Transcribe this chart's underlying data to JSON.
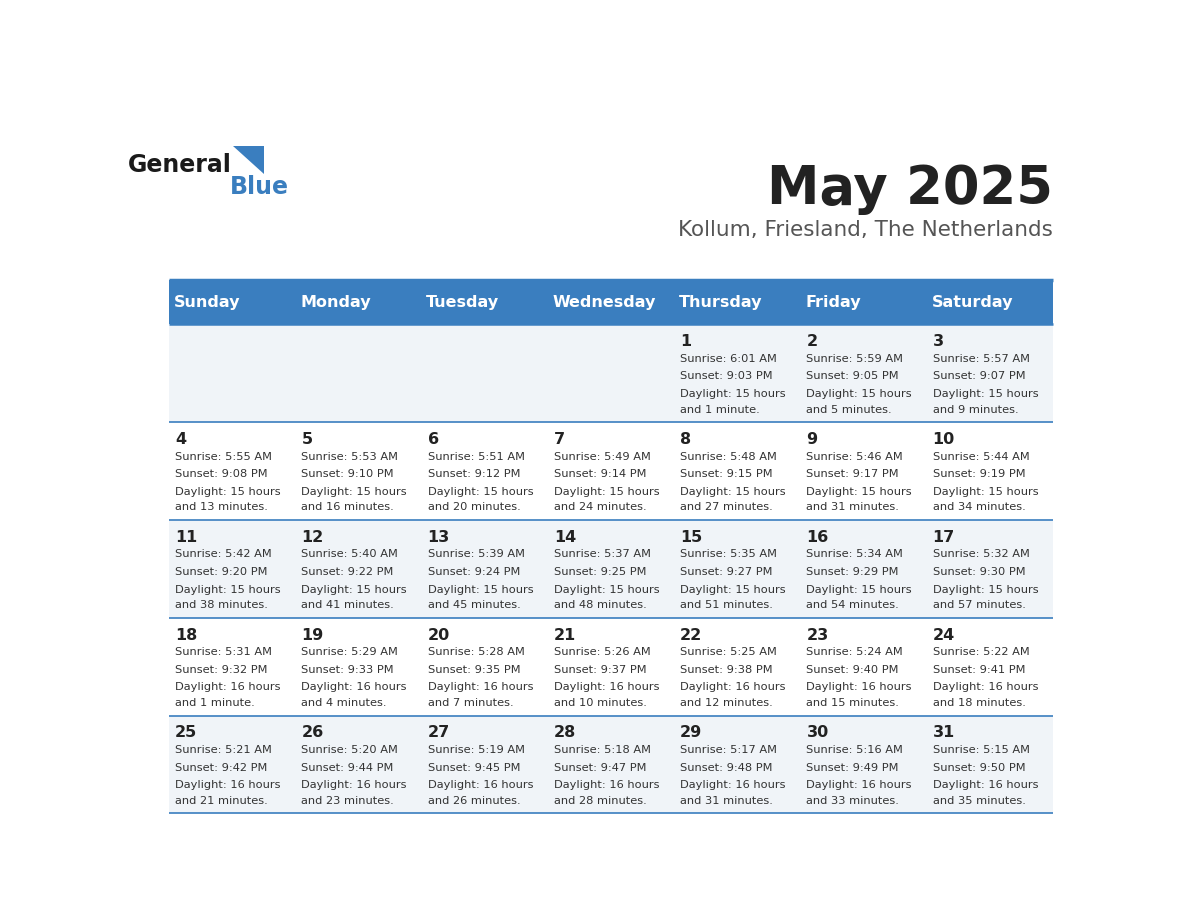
{
  "title": "May 2025",
  "subtitle": "Kollum, Friesland, The Netherlands",
  "header_bg": "#3a7ebf",
  "header_text": "#ffffff",
  "row_bg_odd": "#f0f4f8",
  "row_bg_even": "#ffffff",
  "border_color": "#3a7ebf",
  "day_names": [
    "Sunday",
    "Monday",
    "Tuesday",
    "Wednesday",
    "Thursday",
    "Friday",
    "Saturday"
  ],
  "title_color": "#222222",
  "subtitle_color": "#555555",
  "day_number_color": "#222222",
  "cell_text_color": "#333333",
  "calendar": [
    [
      {
        "day": "",
        "sunrise": "",
        "sunset": "",
        "daylight": ""
      },
      {
        "day": "",
        "sunrise": "",
        "sunset": "",
        "daylight": ""
      },
      {
        "day": "",
        "sunrise": "",
        "sunset": "",
        "daylight": ""
      },
      {
        "day": "",
        "sunrise": "",
        "sunset": "",
        "daylight": ""
      },
      {
        "day": "1",
        "sunrise": "6:01 AM",
        "sunset": "9:03 PM",
        "daylight": "15 hours and 1 minute."
      },
      {
        "day": "2",
        "sunrise": "5:59 AM",
        "sunset": "9:05 PM",
        "daylight": "15 hours and 5 minutes."
      },
      {
        "day": "3",
        "sunrise": "5:57 AM",
        "sunset": "9:07 PM",
        "daylight": "15 hours and 9 minutes."
      }
    ],
    [
      {
        "day": "4",
        "sunrise": "5:55 AM",
        "sunset": "9:08 PM",
        "daylight": "15 hours and 13 minutes."
      },
      {
        "day": "5",
        "sunrise": "5:53 AM",
        "sunset": "9:10 PM",
        "daylight": "15 hours and 16 minutes."
      },
      {
        "day": "6",
        "sunrise": "5:51 AM",
        "sunset": "9:12 PM",
        "daylight": "15 hours and 20 minutes."
      },
      {
        "day": "7",
        "sunrise": "5:49 AM",
        "sunset": "9:14 PM",
        "daylight": "15 hours and 24 minutes."
      },
      {
        "day": "8",
        "sunrise": "5:48 AM",
        "sunset": "9:15 PM",
        "daylight": "15 hours and 27 minutes."
      },
      {
        "day": "9",
        "sunrise": "5:46 AM",
        "sunset": "9:17 PM",
        "daylight": "15 hours and 31 minutes."
      },
      {
        "day": "10",
        "sunrise": "5:44 AM",
        "sunset": "9:19 PM",
        "daylight": "15 hours and 34 minutes."
      }
    ],
    [
      {
        "day": "11",
        "sunrise": "5:42 AM",
        "sunset": "9:20 PM",
        "daylight": "15 hours and 38 minutes."
      },
      {
        "day": "12",
        "sunrise": "5:40 AM",
        "sunset": "9:22 PM",
        "daylight": "15 hours and 41 minutes."
      },
      {
        "day": "13",
        "sunrise": "5:39 AM",
        "sunset": "9:24 PM",
        "daylight": "15 hours and 45 minutes."
      },
      {
        "day": "14",
        "sunrise": "5:37 AM",
        "sunset": "9:25 PM",
        "daylight": "15 hours and 48 minutes."
      },
      {
        "day": "15",
        "sunrise": "5:35 AM",
        "sunset": "9:27 PM",
        "daylight": "15 hours and 51 minutes."
      },
      {
        "day": "16",
        "sunrise": "5:34 AM",
        "sunset": "9:29 PM",
        "daylight": "15 hours and 54 minutes."
      },
      {
        "day": "17",
        "sunrise": "5:32 AM",
        "sunset": "9:30 PM",
        "daylight": "15 hours and 57 minutes."
      }
    ],
    [
      {
        "day": "18",
        "sunrise": "5:31 AM",
        "sunset": "9:32 PM",
        "daylight": "16 hours and 1 minute."
      },
      {
        "day": "19",
        "sunrise": "5:29 AM",
        "sunset": "9:33 PM",
        "daylight": "16 hours and 4 minutes."
      },
      {
        "day": "20",
        "sunrise": "5:28 AM",
        "sunset": "9:35 PM",
        "daylight": "16 hours and 7 minutes."
      },
      {
        "day": "21",
        "sunrise": "5:26 AM",
        "sunset": "9:37 PM",
        "daylight": "16 hours and 10 minutes."
      },
      {
        "day": "22",
        "sunrise": "5:25 AM",
        "sunset": "9:38 PM",
        "daylight": "16 hours and 12 minutes."
      },
      {
        "day": "23",
        "sunrise": "5:24 AM",
        "sunset": "9:40 PM",
        "daylight": "16 hours and 15 minutes."
      },
      {
        "day": "24",
        "sunrise": "5:22 AM",
        "sunset": "9:41 PM",
        "daylight": "16 hours and 18 minutes."
      }
    ],
    [
      {
        "day": "25",
        "sunrise": "5:21 AM",
        "sunset": "9:42 PM",
        "daylight": "16 hours and 21 minutes."
      },
      {
        "day": "26",
        "sunrise": "5:20 AM",
        "sunset": "9:44 PM",
        "daylight": "16 hours and 23 minutes."
      },
      {
        "day": "27",
        "sunrise": "5:19 AM",
        "sunset": "9:45 PM",
        "daylight": "16 hours and 26 minutes."
      },
      {
        "day": "28",
        "sunrise": "5:18 AM",
        "sunset": "9:47 PM",
        "daylight": "16 hours and 28 minutes."
      },
      {
        "day": "29",
        "sunrise": "5:17 AM",
        "sunset": "9:48 PM",
        "daylight": "16 hours and 31 minutes."
      },
      {
        "day": "30",
        "sunrise": "5:16 AM",
        "sunset": "9:49 PM",
        "daylight": "16 hours and 33 minutes."
      },
      {
        "day": "31",
        "sunrise": "5:15 AM",
        "sunset": "9:50 PM",
        "daylight": "16 hours and 35 minutes."
      }
    ]
  ]
}
